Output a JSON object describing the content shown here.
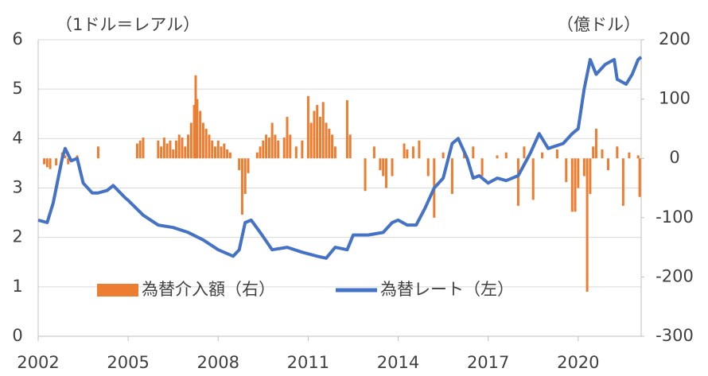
{
  "chart_data": {
    "type": "bar-line",
    "y_label": "（1ドル＝レアル）",
    "y2_label": "（億ドル）",
    "xlim": [
      2002,
      2022.1
    ],
    "xticks": [
      2002,
      2005,
      2008,
      2011,
      2014,
      2017,
      2020
    ],
    "ylim": [
      0,
      6
    ],
    "yticks": [
      0,
      1,
      2,
      3,
      4,
      5,
      6
    ],
    "y2lim": [
      -300,
      200
    ],
    "y2ticks": [
      -300,
      -200,
      -100,
      0,
      100,
      200
    ],
    "grid": true,
    "legend": "bottom",
    "series": [
      {
        "name": "為替介入額（右）",
        "type": "bar",
        "axis": "y2",
        "color": "#ed7d31",
        "x": [
          2002.2,
          2002.3,
          2002.4,
          2002.6,
          2002.8,
          2002.9,
          2003.0,
          2003.3,
          2004.0,
          2005.3,
          2005.4,
          2005.5,
          2006.0,
          2006.1,
          2006.2,
          2006.3,
          2006.4,
          2006.5,
          2006.6,
          2006.7,
          2006.8,
          2006.9,
          2007.0,
          2007.1,
          2007.2,
          2007.25,
          2007.3,
          2007.4,
          2007.5,
          2007.6,
          2007.7,
          2007.8,
          2007.9,
          2008.0,
          2008.1,
          2008.2,
          2008.3,
          2008.4,
          2008.7,
          2008.8,
          2008.9,
          2009.0,
          2009.3,
          2009.4,
          2009.5,
          2009.6,
          2009.7,
          2009.8,
          2009.9,
          2010.0,
          2010.2,
          2010.3,
          2010.4,
          2010.6,
          2010.8,
          2011.0,
          2011.1,
          2011.2,
          2011.3,
          2011.4,
          2011.5,
          2011.6,
          2011.7,
          2011.8,
          2011.9,
          2012.3,
          2012.4,
          2012.9,
          2013.2,
          2013.4,
          2013.5,
          2013.6,
          2013.8,
          2014.2,
          2014.3,
          2014.5,
          2014.7,
          2015.0,
          2015.2,
          2015.5,
          2015.8,
          2016.2,
          2016.5,
          2016.8,
          2017.3,
          2017.6,
          2018.0,
          2018.2,
          2018.5,
          2018.8,
          2019.3,
          2019.6,
          2019.8,
          2019.9,
          2020.0,
          2020.2,
          2020.3,
          2020.4,
          2020.5,
          2020.6,
          2020.8,
          2021.0,
          2021.3,
          2021.5,
          2021.7,
          2022.0,
          2022.05
        ],
        "values": [
          -10,
          -15,
          -18,
          -12,
          10,
          5,
          -10,
          5,
          20,
          25,
          30,
          35,
          30,
          20,
          35,
          25,
          30,
          15,
          30,
          40,
          35,
          20,
          40,
          60,
          90,
          140,
          100,
          80,
          60,
          50,
          40,
          30,
          20,
          30,
          20,
          25,
          15,
          10,
          -20,
          -95,
          -60,
          -25,
          10,
          20,
          30,
          40,
          35,
          60,
          40,
          30,
          35,
          70,
          40,
          20,
          30,
          105,
          60,
          80,
          90,
          70,
          95,
          60,
          50,
          40,
          20,
          98,
          40,
          -55,
          20,
          -20,
          -30,
          -50,
          -30,
          25,
          15,
          20,
          30,
          -30,
          -100,
          10,
          -60,
          10,
          20,
          -30,
          5,
          10,
          -80,
          20,
          -70,
          10,
          15,
          -40,
          -90,
          -90,
          -50,
          -30,
          -225,
          -60,
          20,
          50,
          15,
          -20,
          20,
          -80,
          10,
          5,
          -65
        ]
      },
      {
        "name": "為替レート（左）",
        "type": "line",
        "color": "#4472c4",
        "x": [
          2002.0,
          2002.3,
          2002.5,
          2002.8,
          2002.9,
          2003.1,
          2003.3,
          2003.5,
          2003.8,
          2004.0,
          2004.3,
          2004.5,
          2004.9,
          2005.0,
          2005.5,
          2006.0,
          2006.5,
          2007.0,
          2007.5,
          2008.0,
          2008.5,
          2008.7,
          2008.9,
          2009.1,
          2009.4,
          2009.8,
          2010.3,
          2010.8,
          2011.3,
          2011.6,
          2011.9,
          2012.3,
          2012.5,
          2013.0,
          2013.5,
          2013.8,
          2014.0,
          2014.3,
          2014.6,
          2014.9,
          2015.2,
          2015.5,
          2015.8,
          2016.0,
          2016.3,
          2016.5,
          2016.7,
          2017.0,
          2017.3,
          2017.6,
          2018.0,
          2018.4,
          2018.7,
          2019.0,
          2019.5,
          2019.8,
          2020.0,
          2020.2,
          2020.4,
          2020.6,
          2020.9,
          2021.2,
          2021.3,
          2021.6,
          2021.8,
          2022.0,
          2022.1
        ],
        "values": [
          2.35,
          2.3,
          2.7,
          3.6,
          3.8,
          3.55,
          3.6,
          3.1,
          2.9,
          2.9,
          2.95,
          3.05,
          2.8,
          2.75,
          2.45,
          2.25,
          2.2,
          2.1,
          1.95,
          1.75,
          1.62,
          1.75,
          2.3,
          2.35,
          2.1,
          1.75,
          1.8,
          1.7,
          1.62,
          1.58,
          1.8,
          1.75,
          2.05,
          2.05,
          2.1,
          2.3,
          2.35,
          2.25,
          2.25,
          2.6,
          3.0,
          3.2,
          3.9,
          4.0,
          3.6,
          3.2,
          3.25,
          3.1,
          3.2,
          3.15,
          3.25,
          3.7,
          4.1,
          3.8,
          3.9,
          4.1,
          4.2,
          5.0,
          5.6,
          5.3,
          5.5,
          5.6,
          5.2,
          5.1,
          5.3,
          5.6,
          5.65
        ]
      }
    ]
  }
}
